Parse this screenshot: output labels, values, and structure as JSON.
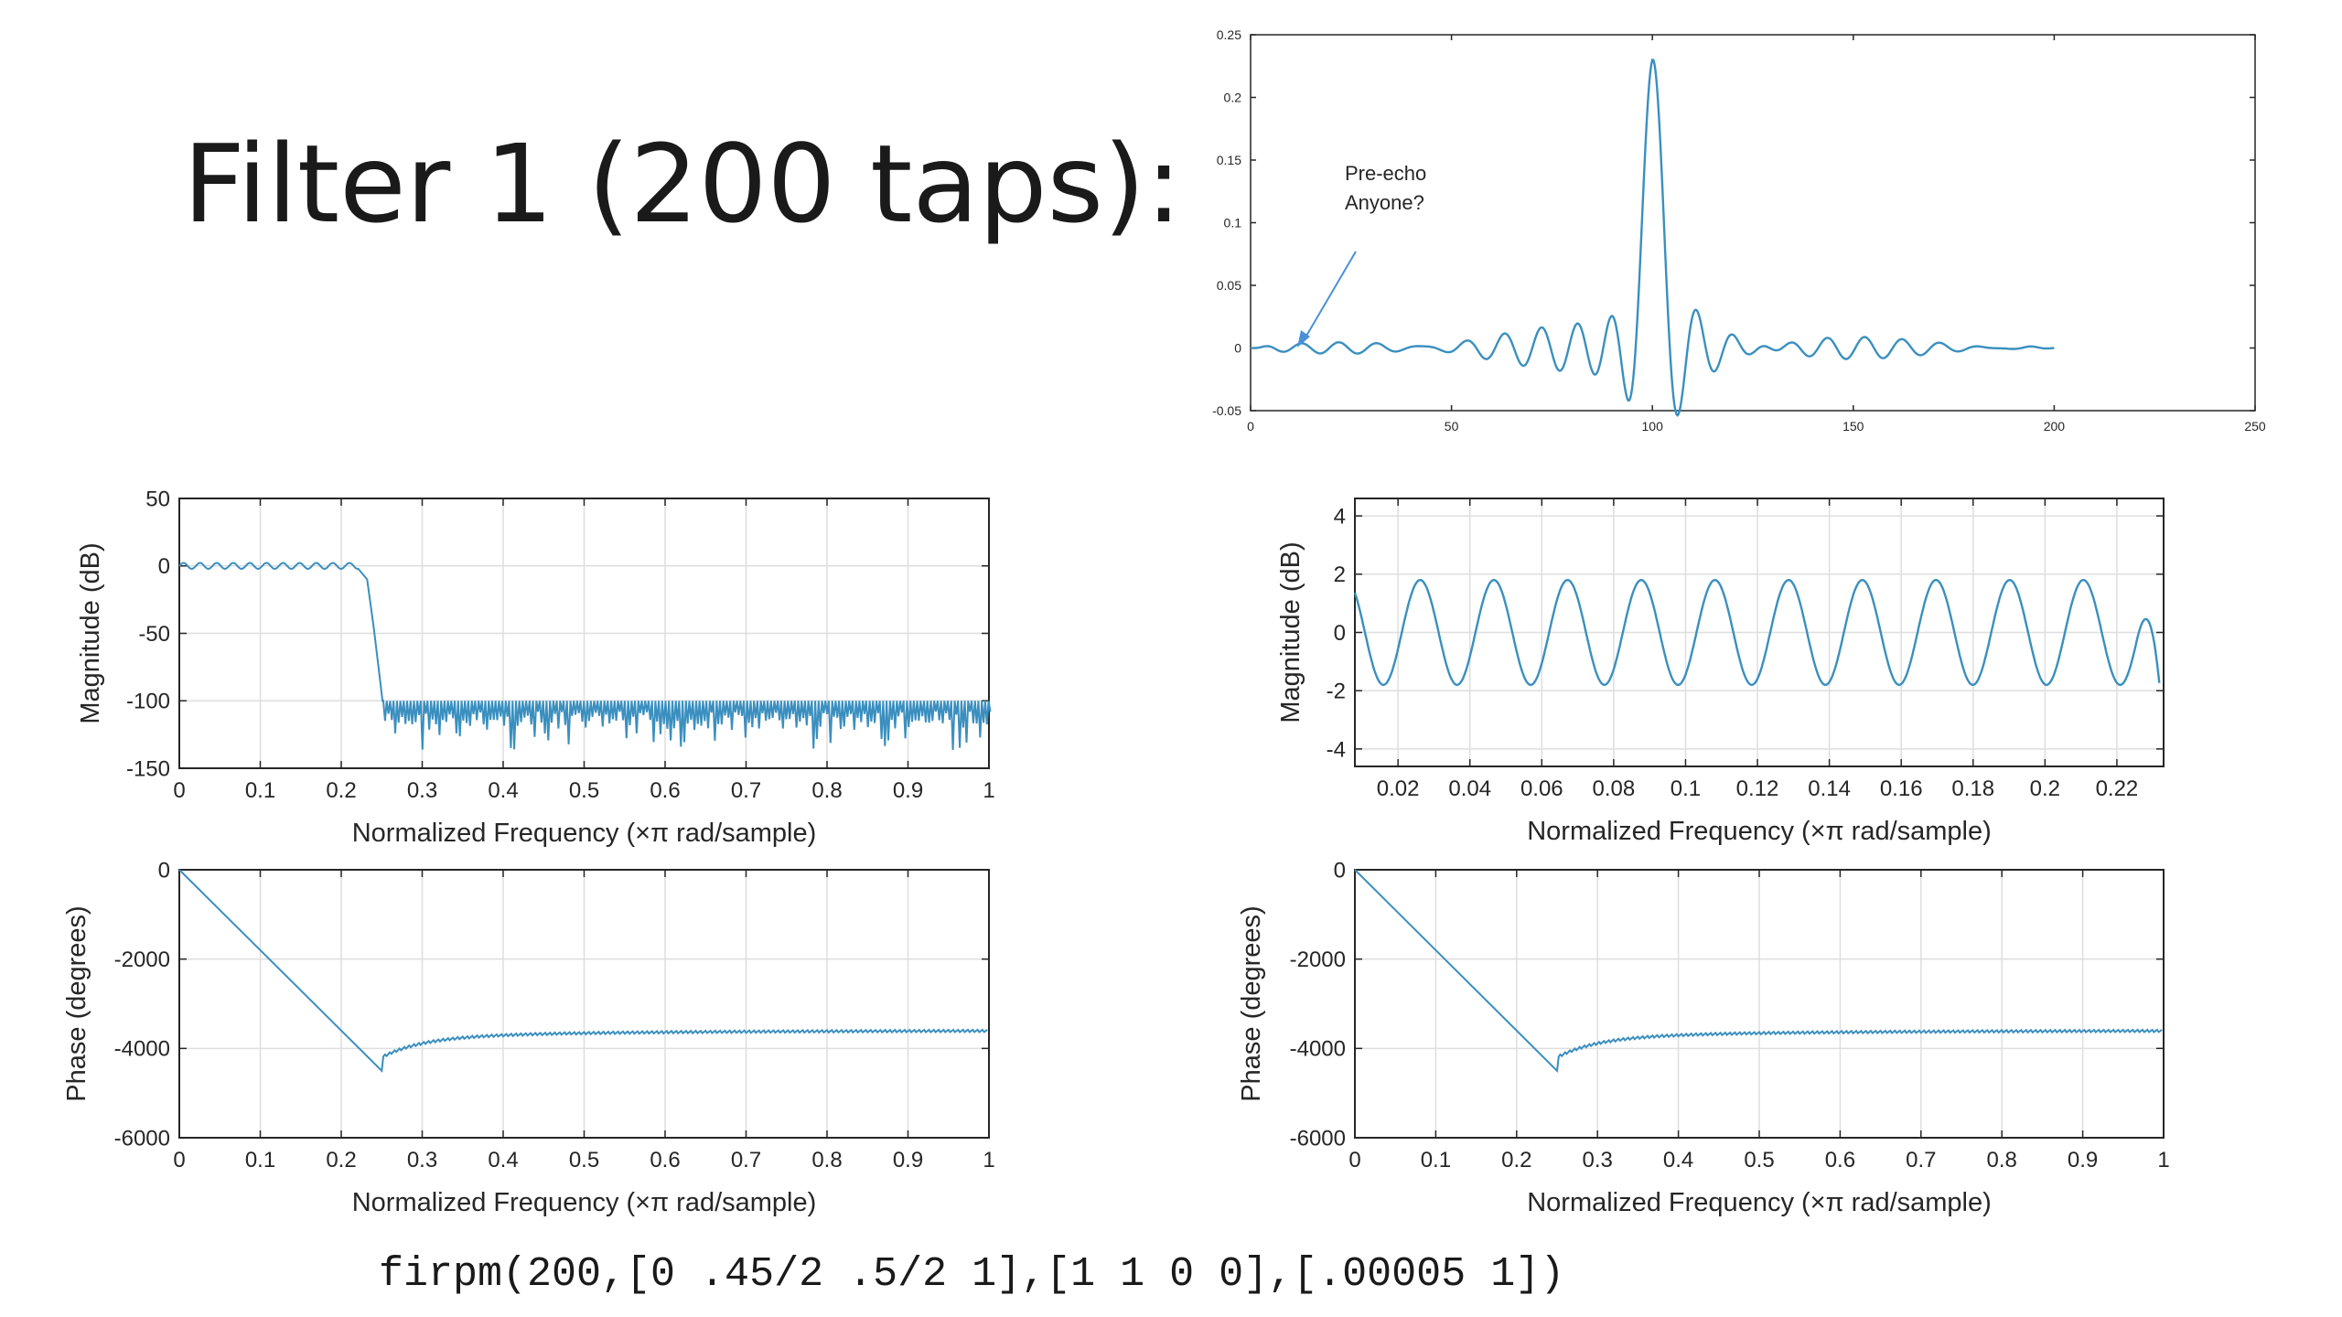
{
  "slide": {
    "title": "Filter 1 (200 taps):",
    "code": "firpm(200,[0 .45/2 .5/2 1],[1 1 0 0],[.00005 1])"
  },
  "colors": {
    "line": "#3a8fbf",
    "axis": "#262626",
    "grid": "#dedede",
    "arrow": "#4a90d9"
  },
  "chart_data": [
    {
      "id": "impulse",
      "type": "line",
      "description_series": "impulse response (filter taps)",
      "xlim": [
        0,
        250
      ],
      "ylim": [
        -0.05,
        0.25
      ],
      "xticks": [
        "0",
        "50",
        "100",
        "150",
        "200",
        "250"
      ],
      "yticks": [
        "-0.05",
        "0",
        "0.05",
        "0.1",
        "0.15",
        "0.2",
        "0.25"
      ],
      "grid": false,
      "center_tap": 100,
      "peak_value": 0.23,
      "annotation": {
        "text_line1": "Pre-echo",
        "text_line2": "Anyone?",
        "points_to_x": 10
      }
    },
    {
      "id": "mag_full",
      "type": "line",
      "xlim": [
        0,
        1
      ],
      "ylim": [
        -150,
        50
      ],
      "xticks": [
        "0",
        "0.1",
        "0.2",
        "0.3",
        "0.4",
        "0.5",
        "0.6",
        "0.7",
        "0.8",
        "0.9",
        "1"
      ],
      "yticks": [
        "-150",
        "-100",
        "-50",
        "0",
        "50"
      ],
      "ylabel": "Magnitude (dB)",
      "xlabel": "Normalized Frequency  (×π rad/sample)",
      "grid": true,
      "passband_edge": 0.225,
      "stopband_edge": 0.25,
      "passband_level": 0,
      "stopband_level": -100
    },
    {
      "id": "phase_full_left",
      "type": "line",
      "xlim": [
        0,
        1
      ],
      "ylim": [
        -6000,
        0
      ],
      "xticks": [
        "0",
        "0.1",
        "0.2",
        "0.3",
        "0.4",
        "0.5",
        "0.6",
        "0.7",
        "0.8",
        "0.9",
        "1"
      ],
      "yticks": [
        "-6000",
        "-4000",
        "-2000",
        "0"
      ],
      "ylabel": "Phase (degrees)",
      "xlabel": "Normalized Frequency  (×π rad/sample)",
      "grid": true,
      "min_point": [
        0.25,
        -4500
      ],
      "end_value": -3600
    },
    {
      "id": "mag_zoom",
      "type": "line",
      "xlim": [
        0.008,
        0.233
      ],
      "ylim": [
        -4.6,
        4.6
      ],
      "xticks": [
        "0.02",
        "0.04",
        "0.06",
        "0.08",
        "0.1",
        "0.12",
        "0.14",
        "0.16",
        "0.18",
        "0.2",
        "0.22"
      ],
      "xtick_values": [
        0.02,
        0.04,
        0.06,
        0.08,
        0.1,
        0.12,
        0.14,
        0.16,
        0.18,
        0.2,
        0.22
      ],
      "yticks": [
        "-4",
        "-2",
        "0",
        "2",
        "4"
      ],
      "ytick_values": [
        -4,
        -2,
        0,
        2,
        4
      ],
      "ylabel": "Magnitude (dB)",
      "xlabel": "Normalized Frequency  (×π rad/sample)",
      "grid": true,
      "ripple_amplitude": 1.8,
      "ripple_period": 0.0205
    },
    {
      "id": "phase_full_right",
      "type": "line",
      "xlim": [
        0,
        1
      ],
      "ylim": [
        -6000,
        0
      ],
      "xticks": [
        "0",
        "0.1",
        "0.2",
        "0.3",
        "0.4",
        "0.5",
        "0.6",
        "0.7",
        "0.8",
        "0.9",
        "1"
      ],
      "yticks": [
        "-6000",
        "-4000",
        "-2000",
        "0"
      ],
      "ylabel": "Phase (degrees)",
      "xlabel": "Normalized Frequency  (×π rad/sample)",
      "grid": true,
      "min_point": [
        0.25,
        -4500
      ],
      "end_value": -3600
    }
  ]
}
